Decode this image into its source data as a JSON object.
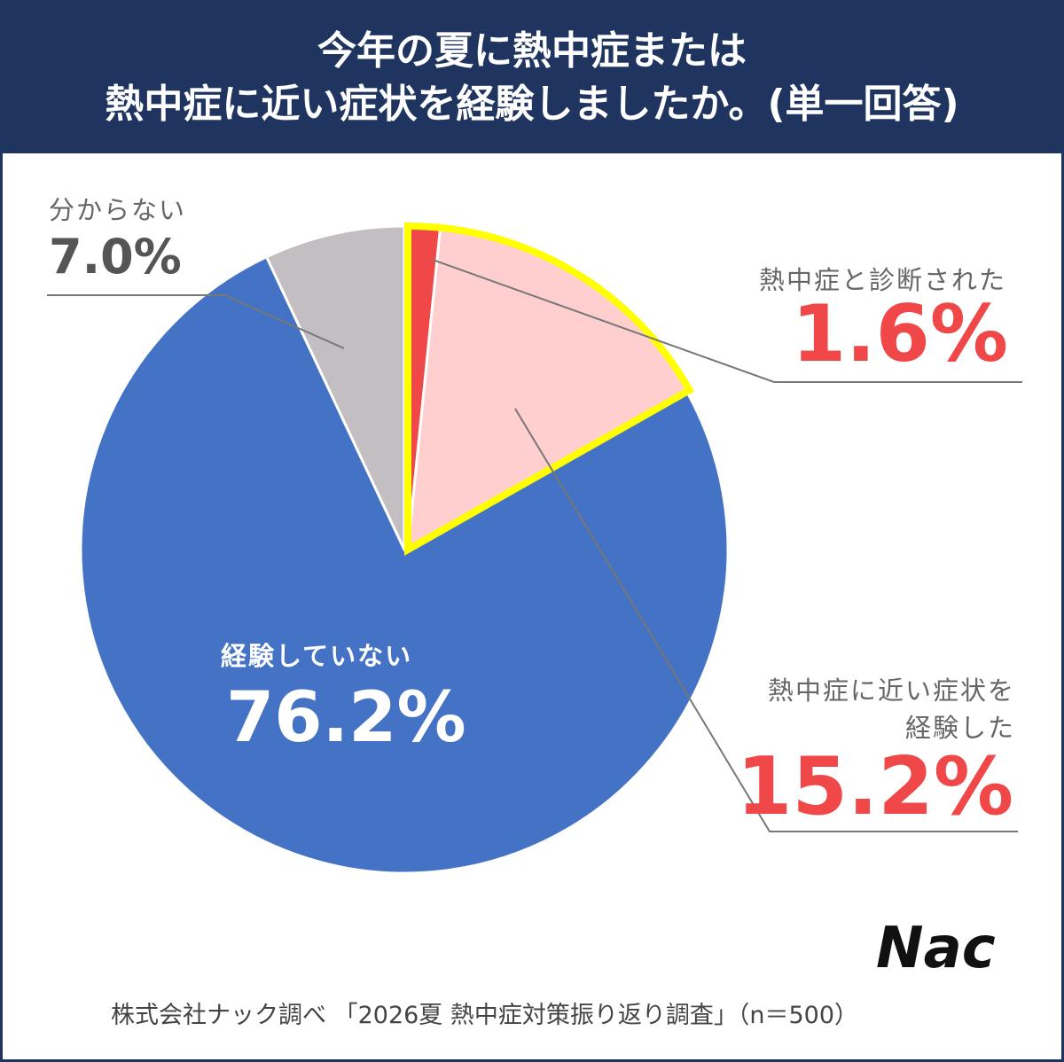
{
  "chart_data": {
    "type": "pie",
    "title": "今年の夏に熱中症または\n熱中症に近い症状を経験しましたか。(単一回答)",
    "categories": [
      "熱中症と診断された",
      "熱中症に近い症状を\n経験した",
      "経験していない",
      "分からない"
    ],
    "values": [
      1.6,
      15.2,
      76.2,
      7.0
    ],
    "value_labels": [
      "1.6%",
      "15.2%",
      "76.2%",
      "7.0%"
    ],
    "colors": [
      "#f04848",
      "#ffcfcf",
      "#4472c4",
      "#c2bec2"
    ],
    "highlight_color": "#ffff00",
    "source": "株式会社ナック調べ 「2026夏 熱中症対策振り返り調査」（n＝500）",
    "logo": "Nac"
  }
}
